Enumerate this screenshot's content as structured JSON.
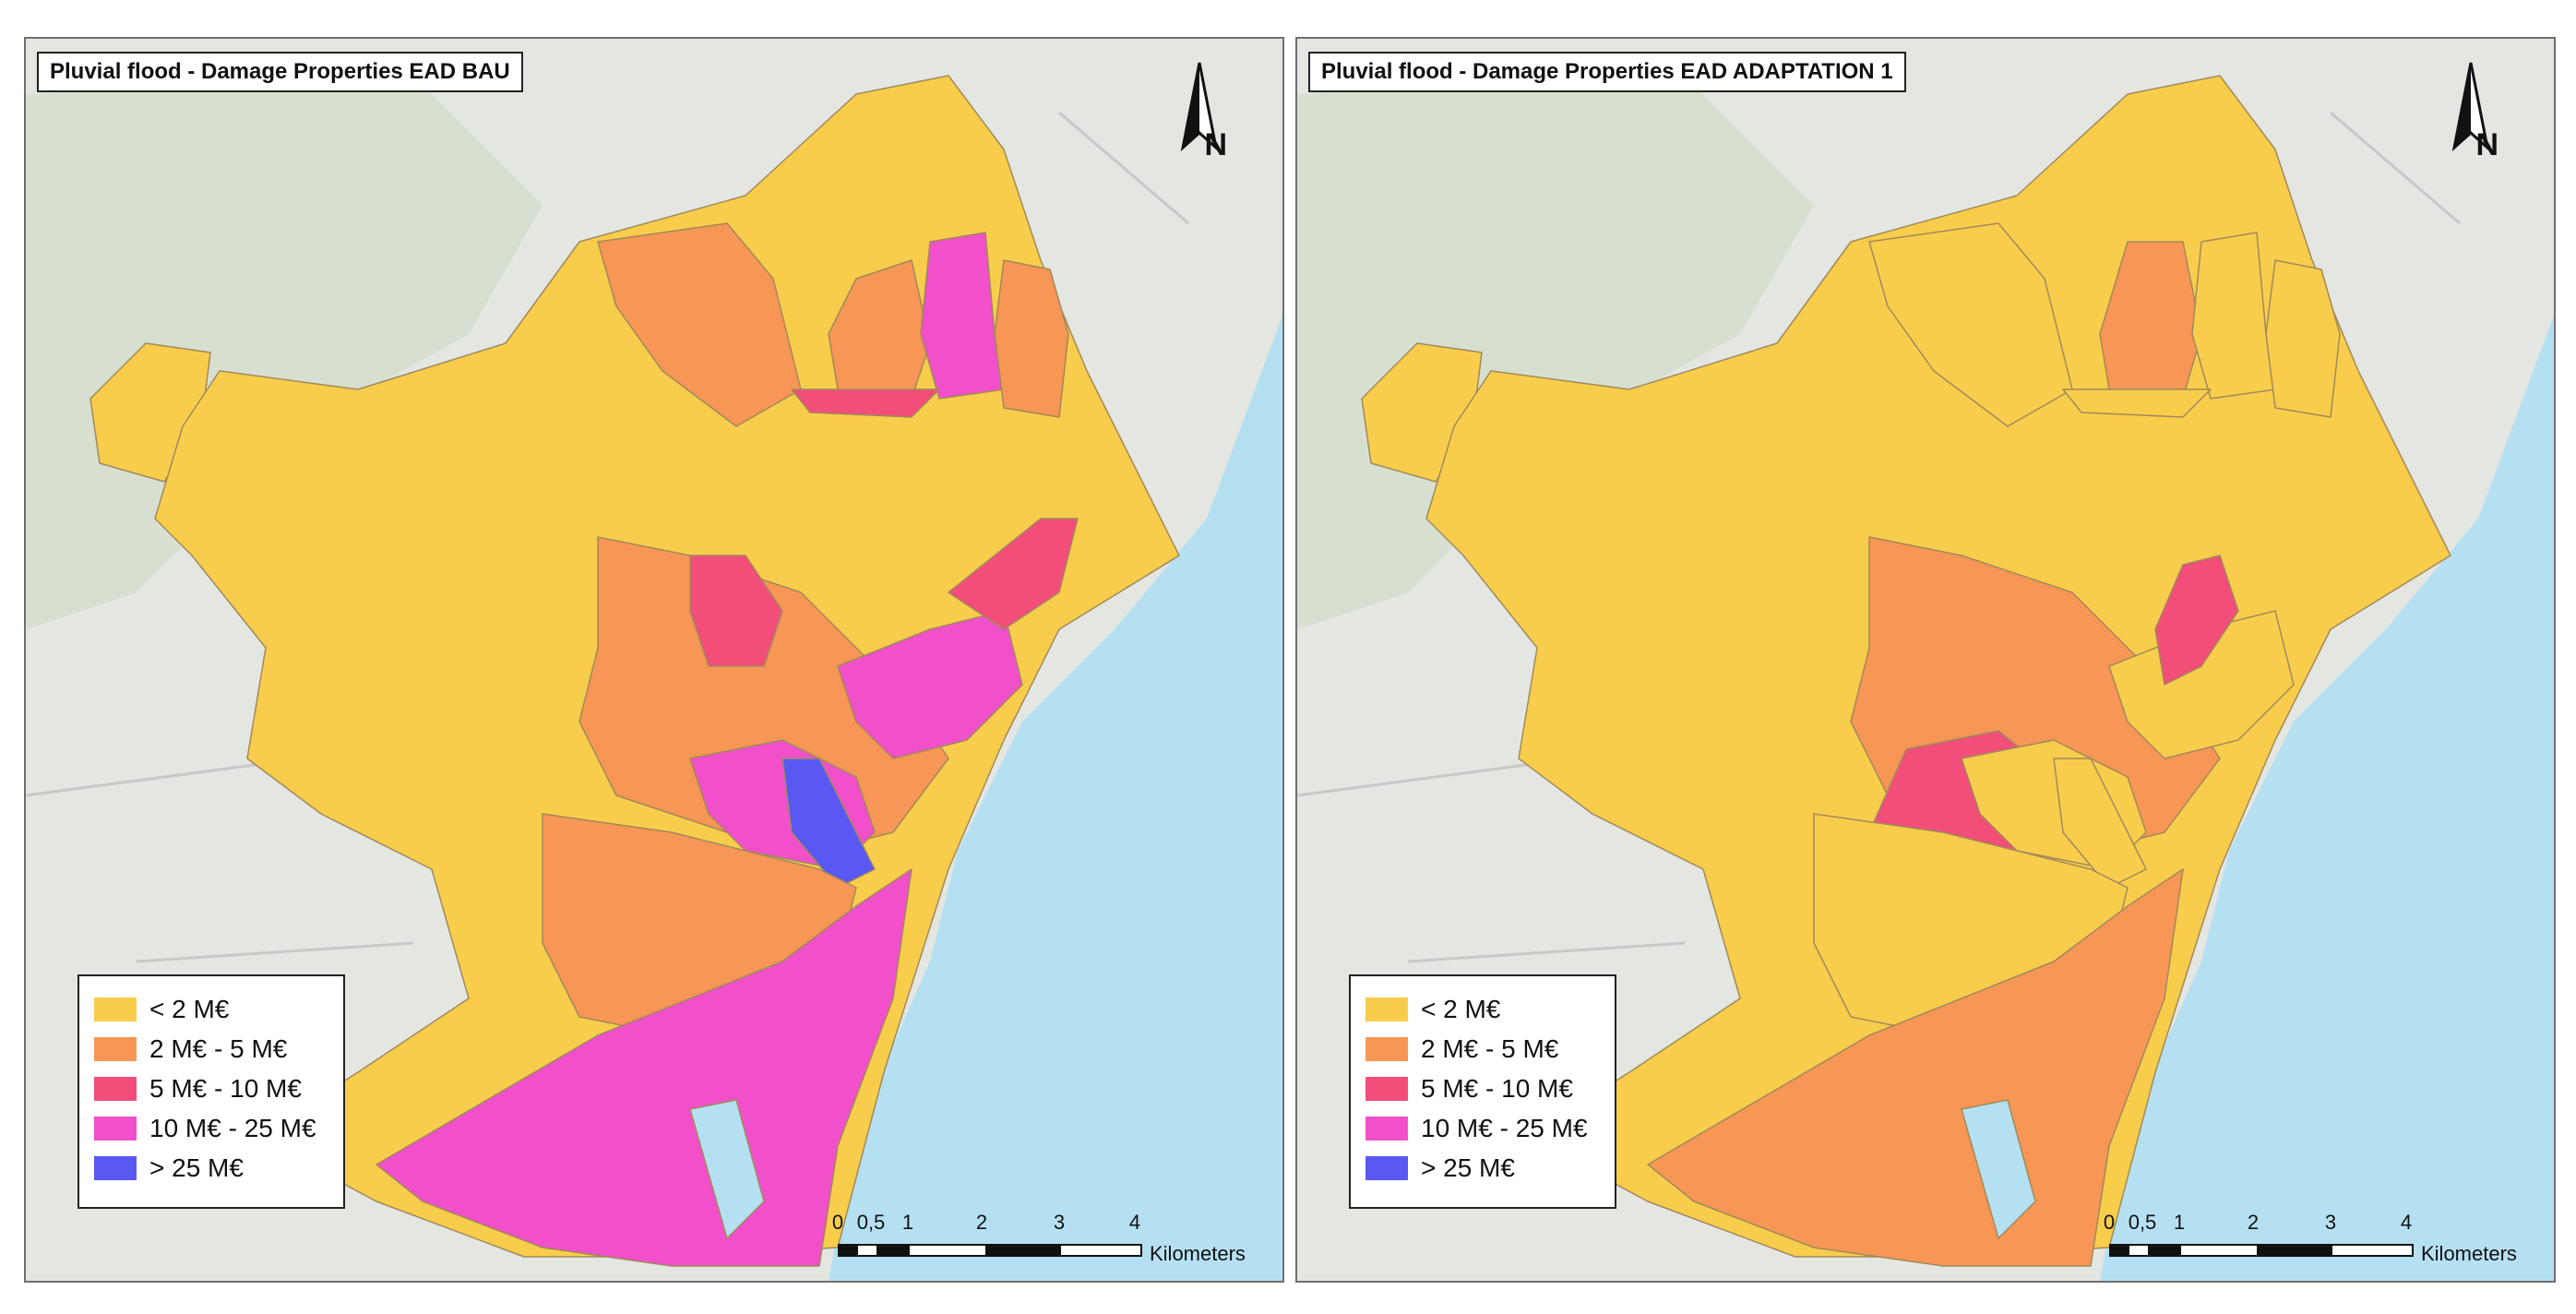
{
  "colors": {
    "lt2": "#f9cd4c",
    "2to5": "#f79655",
    "5to10": "#f34e7a",
    "10to25": "#f24fcb",
    "gt25": "#5a58f2",
    "sea": "#b5e0f2",
    "land": "#e4e6e2",
    "boundary": "#a08a5a"
  },
  "legend": [
    {
      "label": "< 2 M€",
      "color_key": "lt2"
    },
    {
      "label": "2 M€ - 5 M€",
      "color_key": "2to5"
    },
    {
      "label": "5 M€ - 10 M€",
      "color_key": "5to10"
    },
    {
      "label": "10 M€ - 25 M€",
      "color_key": "10to25"
    },
    {
      "label": "> 25 M€",
      "color_key": "gt25"
    }
  ],
  "scale": {
    "ticks": [
      "0",
      "0,5",
      "1",
      "2",
      "3",
      "4"
    ],
    "unit": "Kilometers"
  },
  "north_label": "N",
  "maps": [
    {
      "title": "Pluvial flood - Damage Properties EAD BAU",
      "district_classes": {
        "northwest": "2to5",
        "north_orange": "2to5",
        "north_pink": "10to25",
        "north_strip": "5to10",
        "east_orange": "2to5",
        "center_orange": "2to5",
        "center_red": "5to10",
        "center_pink": "10to25",
        "center_magenta": "10to25",
        "east_red": "5to10",
        "hotspot": "gt25",
        "south_orange": "2to5",
        "port_pink": "10to25"
      }
    },
    {
      "title": "Pluvial flood - Damage Properties EAD ADAPTATION 1",
      "district_classes": {
        "northwest": "lt2",
        "north_orange": "2to5",
        "north_pink": "lt2",
        "north_strip": "lt2",
        "east_orange": "lt2",
        "center_orange": "2to5",
        "center_red": "5to10",
        "center_pink": "lt2",
        "center_magenta": "lt2",
        "east_red": "5to10",
        "hotspot": "lt2",
        "south_orange": "lt2",
        "port_pink": "2to5"
      }
    }
  ]
}
